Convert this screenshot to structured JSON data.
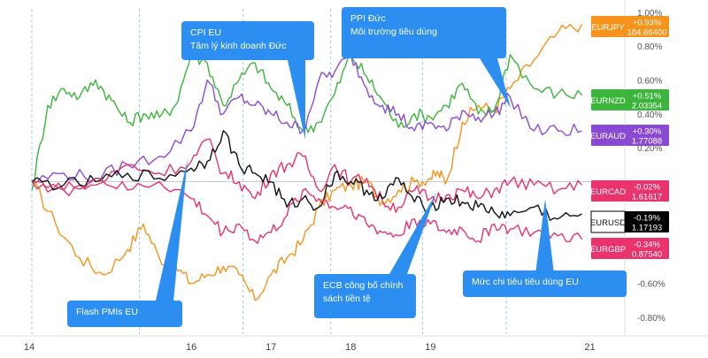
{
  "chart_data": {
    "type": "line",
    "y_unit": "percent change",
    "ylim": [
      -0.9,
      1.02
    ],
    "y_ticks": [
      "1.00%",
      "0.80%",
      "0.60%",
      "0.40%",
      "0.20%",
      "-0.60%",
      "-0.80%"
    ],
    "y_tick_values": [
      1.0,
      0.8,
      0.6,
      0.4,
      0.2,
      -0.6,
      -0.8
    ],
    "x_ticks": [
      "14",
      "16",
      "17",
      "18",
      "19",
      "21"
    ],
    "x_tick_days": [
      14,
      16,
      17,
      18,
      19,
      21
    ],
    "xlim_days": [
      14,
      20.95
    ],
    "zero_line": 0,
    "grid": "vertical dashed session lines, light blue",
    "legend_placement": "right side, at each series' last value",
    "series": [
      {
        "name": "EURJPY",
        "color": "#f7931a",
        "change_label": "+0.93%",
        "price_label": "184.66400",
        "x": [
          14.0,
          14.3,
          14.6,
          14.9,
          15.2,
          15.4,
          15.6,
          15.8,
          16.0,
          16.2,
          16.4,
          16.6,
          16.8,
          17.0,
          17.2,
          17.4,
          17.6,
          17.8,
          18.0,
          18.2,
          18.4,
          18.6,
          18.8,
          19.0,
          19.1,
          19.2,
          19.4,
          19.6,
          19.8,
          20.0,
          20.3,
          20.6,
          20.9
        ],
        "y": [
          0.0,
          -0.25,
          -0.45,
          -0.55,
          -0.4,
          -0.25,
          -0.45,
          -0.5,
          -0.6,
          -0.55,
          -0.5,
          -0.55,
          -0.7,
          -0.55,
          -0.45,
          -0.35,
          -0.15,
          -0.05,
          -0.02,
          0.0,
          -0.12,
          -0.05,
          0.0,
          0.02,
          0.05,
          0.0,
          0.35,
          0.45,
          0.42,
          0.55,
          0.72,
          0.88,
          0.93
        ]
      },
      {
        "name": "EURNZD",
        "color": "#3bb53b",
        "change_label": "+0.51%",
        "price_label": "2.03354",
        "x": [
          14.0,
          14.2,
          14.4,
          14.6,
          14.8,
          15.0,
          15.2,
          15.4,
          15.6,
          15.8,
          16.0,
          16.2,
          16.4,
          16.6,
          16.8,
          17.0,
          17.2,
          17.4,
          17.6,
          17.8,
          18.0,
          18.2,
          18.4,
          18.6,
          18.8,
          19.0,
          19.2,
          19.4,
          19.6,
          19.8,
          20.0,
          20.3,
          20.6,
          20.9
        ],
        "y": [
          -0.05,
          0.45,
          0.55,
          0.5,
          0.6,
          0.48,
          0.35,
          0.4,
          0.38,
          0.45,
          0.75,
          0.7,
          0.45,
          0.6,
          0.7,
          0.55,
          0.45,
          0.3,
          0.35,
          0.52,
          0.75,
          0.62,
          0.48,
          0.32,
          0.4,
          0.38,
          0.45,
          0.58,
          0.4,
          0.42,
          0.75,
          0.55,
          0.52,
          0.51
        ]
      },
      {
        "name": "EURAUD",
        "color": "#8a4bd4",
        "change_label": "+0.30%",
        "price_label": "1.77088",
        "x": [
          14.0,
          14.4,
          14.8,
          15.2,
          15.6,
          16.0,
          16.2,
          16.4,
          16.6,
          16.8,
          17.0,
          17.2,
          17.4,
          17.6,
          17.8,
          18.0,
          18.2,
          18.4,
          18.6,
          18.8,
          19.0,
          19.2,
          19.4,
          19.6,
          19.8,
          20.0,
          20.3,
          20.6,
          20.9
        ],
        "y": [
          0.0,
          0.05,
          0.02,
          0.1,
          0.15,
          0.3,
          0.6,
          0.4,
          0.5,
          0.45,
          0.4,
          0.35,
          0.3,
          0.6,
          0.65,
          0.75,
          0.55,
          0.45,
          0.4,
          0.3,
          0.35,
          0.3,
          0.42,
          0.38,
          0.4,
          0.5,
          0.3,
          0.3,
          0.3
        ]
      },
      {
        "name": "EURCAD",
        "color": "#e8336d",
        "change_label": "-0.02%",
        "price_label": "1.61617",
        "x": [
          14.0,
          14.4,
          14.8,
          15.2,
          15.6,
          16.0,
          16.2,
          16.4,
          16.6,
          16.8,
          17.0,
          17.2,
          17.4,
          17.6,
          17.8,
          18.0,
          18.2,
          18.4,
          18.6,
          18.8,
          19.0,
          19.2,
          19.4,
          19.6,
          19.8,
          20.0,
          20.3,
          20.6,
          20.9
        ],
        "y": [
          0.0,
          -0.05,
          -0.02,
          0.1,
          0.05,
          0.12,
          0.25,
          0.05,
          0.0,
          -0.1,
          0.05,
          0.1,
          0.15,
          -0.05,
          0.1,
          0.0,
          0.02,
          -0.12,
          -0.15,
          -0.05,
          -0.1,
          -0.08,
          -0.05,
          -0.1,
          -0.05,
          0.0,
          -0.02,
          -0.05,
          -0.02
        ]
      },
      {
        "name": "EURUSD",
        "color": "#111111",
        "change_label": "-0.19%",
        "price_label": "1.17193",
        "x": [
          14.0,
          14.4,
          14.8,
          15.2,
          15.6,
          16.0,
          16.2,
          16.4,
          16.6,
          16.8,
          17.0,
          17.2,
          17.4,
          17.6,
          17.8,
          18.0,
          18.2,
          18.4,
          18.6,
          18.8,
          19.0,
          19.2,
          19.4,
          19.6,
          19.8,
          20.0,
          20.3,
          20.6,
          20.9
        ],
        "y": [
          0.0,
          -0.02,
          0.0,
          0.05,
          0.02,
          0.08,
          0.12,
          0.3,
          0.1,
          0.05,
          0.0,
          -0.15,
          -0.1,
          -0.15,
          0.05,
          0.0,
          -0.05,
          -0.1,
          0.02,
          -0.12,
          -0.15,
          -0.1,
          -0.12,
          -0.15,
          -0.18,
          -0.2,
          -0.15,
          -0.22,
          -0.19
        ]
      },
      {
        "name": "EURGBP",
        "color": "#e8336d",
        "change_label": "-0.34%",
        "price_label": "0.87540",
        "x": [
          14.0,
          14.4,
          14.8,
          15.2,
          15.6,
          16.0,
          16.2,
          16.4,
          16.6,
          16.8,
          17.0,
          17.2,
          17.4,
          17.6,
          17.8,
          18.0,
          18.2,
          18.4,
          18.6,
          18.8,
          19.0,
          19.2,
          19.4,
          19.6,
          19.8,
          20.0,
          20.3,
          20.6,
          20.9
        ],
        "y": [
          0.0,
          -0.05,
          0.02,
          -0.05,
          0.0,
          -0.1,
          -0.2,
          -0.3,
          -0.25,
          -0.35,
          -0.3,
          -0.2,
          -0.05,
          -0.1,
          -0.15,
          -0.15,
          -0.25,
          -0.3,
          -0.32,
          -0.22,
          -0.25,
          -0.3,
          -0.28,
          -0.35,
          -0.25,
          -0.28,
          -0.3,
          -0.32,
          -0.34
        ]
      }
    ],
    "annotations": [
      {
        "lines": [
          "CPI EU",
          "Tâm lý kinh doanh Đức"
        ],
        "x": 17.15,
        "y": 0.3
      },
      {
        "lines": [
          "PPI Đức",
          "Môi trường tiêu dùng"
        ],
        "x": 19.05,
        "y": 0.4
      },
      {
        "lines": [
          "Flash PMIs EU"
        ],
        "x": 16.1,
        "y": -0.05
      },
      {
        "lines": [
          "ECB công bố chính",
          "sách tiền tệ"
        ],
        "x": 18.35,
        "y": -0.05
      },
      {
        "lines": [
          "Mức chi tiêu tiêu dùng EU"
        ],
        "x": 20.4,
        "y": -0.25
      }
    ]
  }
}
